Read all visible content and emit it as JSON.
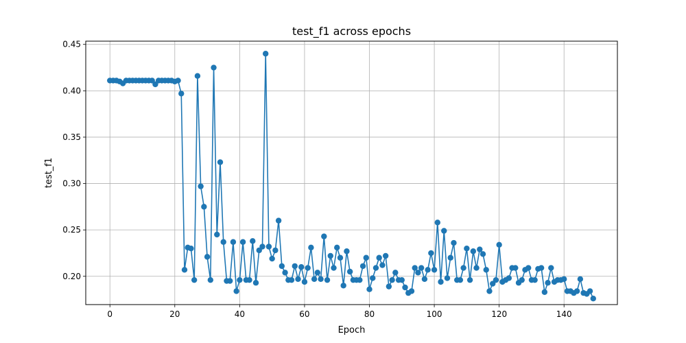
{
  "chart_data": {
    "type": "line",
    "title": "test_f1 across epochs",
    "xlabel": "Epoch",
    "ylabel": "test_f1",
    "xlim": [
      -7.45,
      156.45
    ],
    "ylim": [
      0.1695,
      0.4535
    ],
    "xticks": [
      0,
      20,
      40,
      60,
      80,
      100,
      120,
      140
    ],
    "xtick_labels": [
      "0",
      "20",
      "40",
      "60",
      "80",
      "100",
      "120",
      "140"
    ],
    "yticks": [
      0.2,
      0.25,
      0.3,
      0.35,
      0.4,
      0.45
    ],
    "ytick_labels": [
      "0.20",
      "0.25",
      "0.30",
      "0.35",
      "0.40",
      "0.45"
    ],
    "grid": true,
    "legend": false,
    "series": [
      {
        "color": "#1f77b4",
        "marker": "circle",
        "x": [
          0,
          1,
          2,
          3,
          4,
          5,
          6,
          7,
          8,
          9,
          10,
          11,
          12,
          13,
          14,
          15,
          16,
          17,
          18,
          19,
          20,
          21,
          22,
          23,
          24,
          25,
          26,
          27,
          28,
          29,
          30,
          31,
          32,
          33,
          34,
          35,
          36,
          37,
          38,
          39,
          40,
          41,
          42,
          43,
          44,
          45,
          46,
          47,
          48,
          49,
          50,
          51,
          52,
          53,
          54,
          55,
          56,
          57,
          58,
          59,
          60,
          61,
          62,
          63,
          64,
          65,
          66,
          67,
          68,
          69,
          70,
          71,
          72,
          73,
          74,
          75,
          76,
          77,
          78,
          79,
          80,
          81,
          82,
          83,
          84,
          85,
          86,
          87,
          88,
          89,
          90,
          91,
          92,
          93,
          94,
          95,
          96,
          97,
          98,
          99,
          100,
          101,
          102,
          103,
          104,
          105,
          106,
          107,
          108,
          109,
          110,
          111,
          112,
          113,
          114,
          115,
          116,
          117,
          118,
          119,
          120,
          121,
          122,
          123,
          124,
          125,
          126,
          127,
          128,
          129,
          130,
          131,
          132,
          133,
          134,
          135,
          136,
          137,
          138,
          139,
          140,
          141,
          142,
          143,
          144,
          145,
          146,
          147,
          148,
          149
        ],
        "y": [
          0.411,
          0.411,
          0.411,
          0.41,
          0.408,
          0.411,
          0.411,
          0.411,
          0.411,
          0.411,
          0.411,
          0.411,
          0.411,
          0.411,
          0.407,
          0.411,
          0.411,
          0.411,
          0.411,
          0.411,
          0.41,
          0.411,
          0.397,
          0.207,
          0.231,
          0.23,
          0.196,
          0.416,
          0.297,
          0.275,
          0.221,
          0.196,
          0.425,
          0.245,
          0.323,
          0.237,
          0.195,
          0.195,
          0.237,
          0.184,
          0.196,
          0.237,
          0.196,
          0.196,
          0.238,
          0.193,
          0.228,
          0.232,
          0.44,
          0.232,
          0.219,
          0.228,
          0.26,
          0.211,
          0.204,
          0.196,
          0.196,
          0.211,
          0.197,
          0.21,
          0.194,
          0.209,
          0.231,
          0.197,
          0.204,
          0.197,
          0.243,
          0.196,
          0.222,
          0.209,
          0.231,
          0.22,
          0.19,
          0.227,
          0.205,
          0.196,
          0.196,
          0.196,
          0.211,
          0.22,
          0.186,
          0.198,
          0.209,
          0.22,
          0.212,
          0.222,
          0.189,
          0.196,
          0.204,
          0.196,
          0.196,
          0.188,
          0.182,
          0.184,
          0.209,
          0.204,
          0.209,
          0.197,
          0.207,
          0.225,
          0.207,
          0.258,
          0.194,
          0.249,
          0.198,
          0.22,
          0.236,
          0.196,
          0.196,
          0.209,
          0.23,
          0.196,
          0.227,
          0.209,
          0.229,
          0.224,
          0.207,
          0.184,
          0.192,
          0.196,
          0.234,
          0.194,
          0.196,
          0.198,
          0.209,
          0.209,
          0.193,
          0.196,
          0.207,
          0.209,
          0.196,
          0.196,
          0.208,
          0.209,
          0.183,
          0.193,
          0.209,
          0.194,
          0.196,
          0.196,
          0.197,
          0.184,
          0.184,
          0.182,
          0.184,
          0.197,
          0.182,
          0.181,
          0.184,
          0.176
        ]
      }
    ]
  }
}
